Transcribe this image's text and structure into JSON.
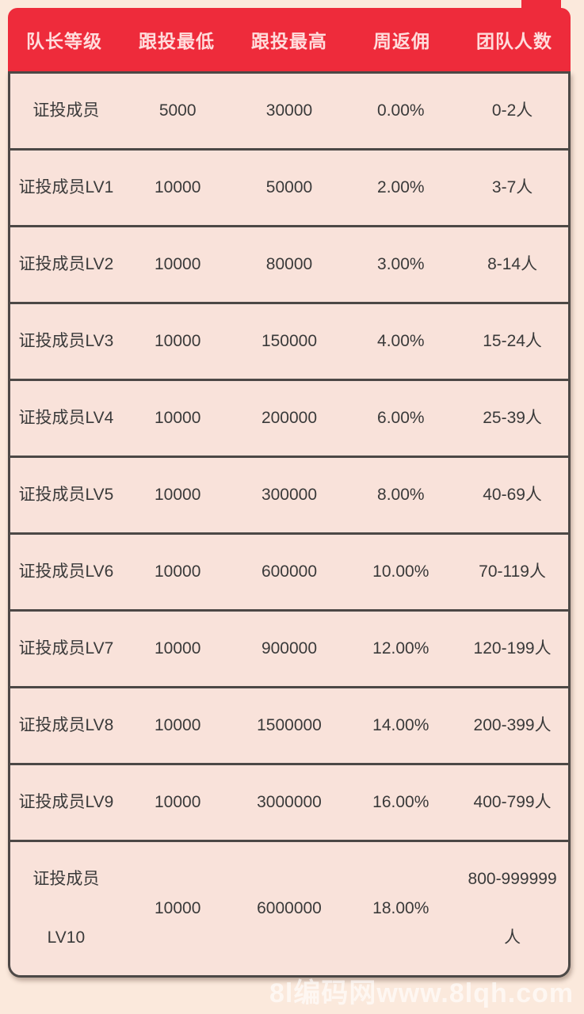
{
  "colors": {
    "accent_red": "#ee2b3b",
    "page_background": "#fbe9dc",
    "row_background": "#f9e2da",
    "divider": "#4c4846",
    "header_text": "#ffdcdc",
    "body_text": "#3a3a3a"
  },
  "table": {
    "columns": [
      "队长等级",
      "跟投最低",
      "跟投最高",
      "周返佣",
      "团队人数"
    ],
    "rows": [
      [
        "证投成员",
        "5000",
        "30000",
        "0.00%",
        "0-2人"
      ],
      [
        "证投成员LV1",
        "10000",
        "50000",
        "2.00%",
        "3-7人"
      ],
      [
        "证投成员LV2",
        "10000",
        "80000",
        "3.00%",
        "8-14人"
      ],
      [
        "证投成员LV3",
        "10000",
        "150000",
        "4.00%",
        "15-24人"
      ],
      [
        "证投成员LV4",
        "10000",
        "200000",
        "6.00%",
        "25-39人"
      ],
      [
        "证投成员LV5",
        "10000",
        "300000",
        "8.00%",
        "40-69人"
      ],
      [
        "证投成员LV6",
        "10000",
        "600000",
        "10.00%",
        "70-119人"
      ],
      [
        "证投成员LV7",
        "10000",
        "900000",
        "12.00%",
        "120-199人"
      ],
      [
        "证投成员LV8",
        "10000",
        "1500000",
        "14.00%",
        "200-399人"
      ],
      [
        "证投成员LV9",
        "10000",
        "3000000",
        "16.00%",
        "400-799人"
      ],
      [
        "证投成员\nLV10",
        "10000",
        "6000000",
        "18.00%",
        "800-999999\n人"
      ]
    ]
  },
  "watermark": {
    "text": "8l编码网www.8lqh.com"
  }
}
